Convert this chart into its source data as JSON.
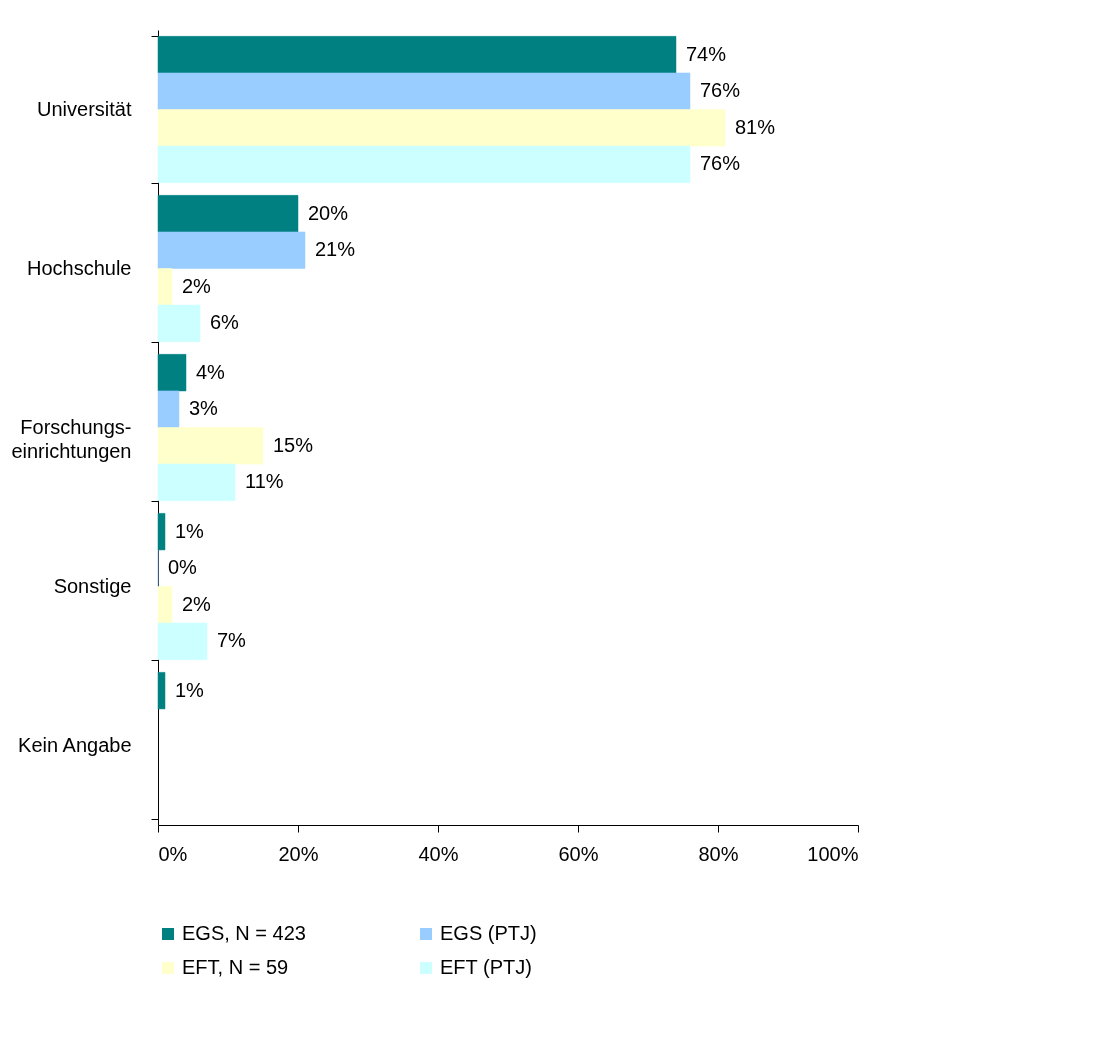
{
  "chart_data": {
    "type": "bar",
    "orientation": "horizontal",
    "categories": [
      "Universität",
      "Hochschule",
      "Forschungs-\neinrichtungen",
      "Sonstige",
      "Kein Angabe"
    ],
    "series": [
      {
        "name": "EGS, N = 423",
        "color": "#008080",
        "values": [
          74,
          20,
          4,
          1,
          1
        ],
        "value_labels": [
          "74%",
          "20%",
          "4%",
          "1%",
          "1%"
        ]
      },
      {
        "name": "EGS (PTJ)",
        "color": "#99ccff",
        "values": [
          76,
          21,
          3,
          0,
          null
        ],
        "value_labels": [
          "76%",
          "21%",
          "3%",
          "0%",
          null
        ]
      },
      {
        "name": "EFT, N = 59",
        "color": "#ffffcc",
        "values": [
          81,
          2,
          15,
          2,
          null
        ],
        "value_labels": [
          "81%",
          "2%",
          "15%",
          "2%",
          null
        ]
      },
      {
        "name": "EFT (PTJ)",
        "color": "#ccffff",
        "values": [
          76,
          6,
          11,
          7,
          null
        ],
        "value_labels": [
          "76%",
          "6%",
          "11%",
          "7%",
          null
        ]
      }
    ],
    "xlim": [
      0,
      100
    ],
    "xticks": [
      {
        "value": 0,
        "label": "0%"
      },
      {
        "value": 20,
        "label": "20%"
      },
      {
        "value": 40,
        "label": "40%"
      },
      {
        "value": 60,
        "label": "60%"
      },
      {
        "value": 80,
        "label": "80%"
      },
      {
        "value": 100,
        "label": "100%"
      }
    ],
    "grid": false,
    "legend": "bottom"
  }
}
